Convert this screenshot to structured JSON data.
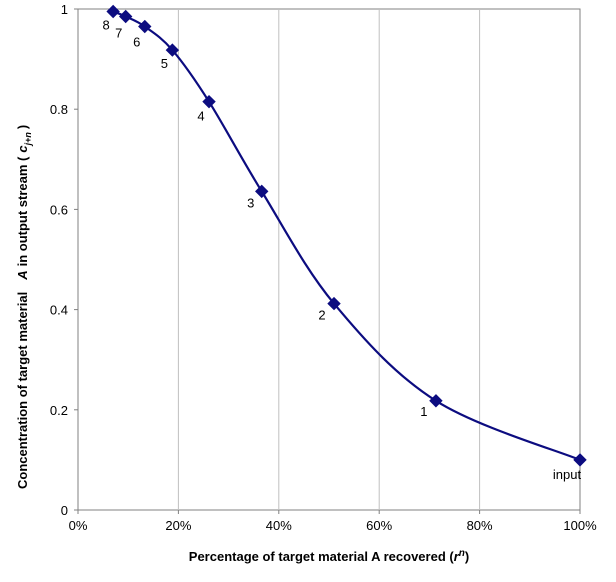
{
  "chart_data": {
    "type": "line",
    "xlabel": {
      "prefix": "Percentage of target material A recovered (",
      "var": "r",
      "sup": "n",
      "suffix": ")"
    },
    "ylabel": {
      "prefix": "Concentration of target material",
      "var_a": "A",
      "mid": "in output stream (",
      "var_c": "c",
      "sub": "j+n",
      "suffix": ")"
    },
    "xlim": [
      0,
      100
    ],
    "ylim": [
      0,
      1
    ],
    "x_ticks": [
      "0%",
      "20%",
      "40%",
      "60%",
      "80%",
      "100%"
    ],
    "y_ticks": [
      "0",
      "0.2",
      "0.4",
      "0.6",
      "0.8",
      "1"
    ],
    "grid": "vertical",
    "line_color": "#0c0c80",
    "marker": "diamond",
    "series": [
      {
        "x": [
          7,
          9.5,
          13.3,
          18.8,
          26.1,
          36.6,
          51,
          71.3,
          100
        ],
        "y": [
          0.995,
          0.985,
          0.965,
          0.918,
          0.815,
          0.636,
          0.412,
          0.218,
          0.1
        ],
        "labels": [
          "8",
          "7",
          "6",
          "5",
          "4",
          "3",
          "2",
          "1",
          "input"
        ]
      }
    ]
  }
}
